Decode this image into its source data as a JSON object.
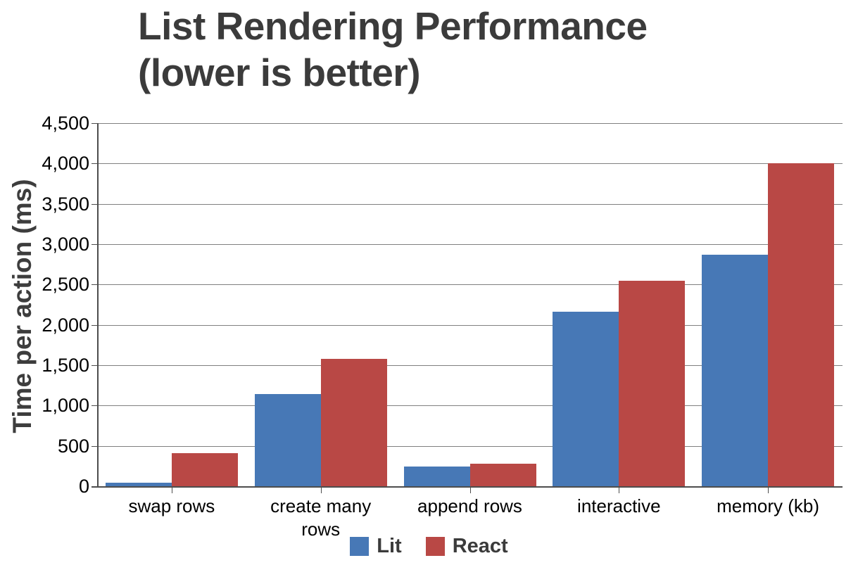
{
  "header": {
    "title_line1": "List Rendering Performance",
    "title_line2": "(lower is better)"
  },
  "chart_data": {
    "type": "bar",
    "title": "List Rendering Performance (lower is better)",
    "subtitle": "(lower is better)",
    "xlabel": "",
    "ylabel": "Time per action (ms)",
    "categories": [
      "swap rows",
      "create many rows",
      "append rows",
      "interactive",
      "memory (kb)"
    ],
    "series": [
      {
        "name": "Lit",
        "color": "#4778B6",
        "values": [
          45,
          1140,
          240,
          2160,
          2870
        ]
      },
      {
        "name": "React",
        "color": "#B94845",
        "values": [
          410,
          1580,
          275,
          2550,
          4000
        ]
      }
    ],
    "ylim": [
      0,
      4500
    ],
    "ytick_step": 500,
    "ytick_labels": [
      "0",
      "500",
      "1,000",
      "1,500",
      "2,000",
      "2,500",
      "3,000",
      "3,500",
      "4,000",
      "4,500"
    ],
    "grid": true,
    "legend_position": "bottom",
    "colors": {
      "gridline": "#808080",
      "axis_line": "#4d4d4d",
      "tick_text": "#000000",
      "title_text": "#3b3b3b"
    }
  }
}
